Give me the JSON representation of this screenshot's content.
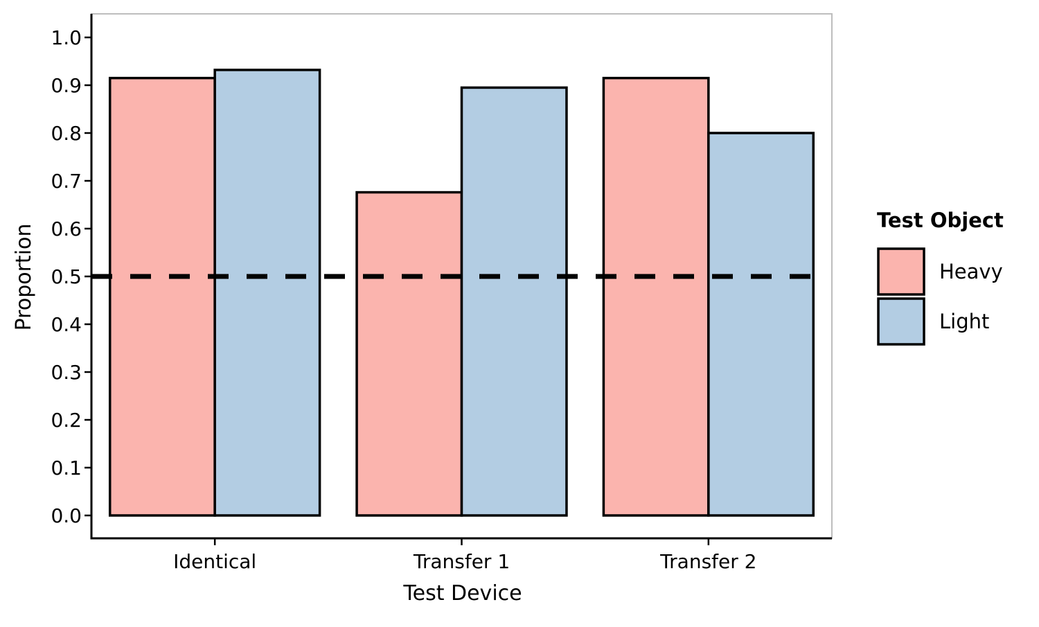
{
  "chart_data": {
    "type": "bar",
    "categories": [
      "Identical",
      "Transfer 1",
      "Transfer 2"
    ],
    "series": [
      {
        "name": "Heavy",
        "values": [
          0.915,
          0.676,
          0.915
        ],
        "color": "#FBB4AE"
      },
      {
        "name": "Light",
        "values": [
          0.932,
          0.895,
          0.8
        ],
        "color": "#B3CDE3"
      }
    ],
    "xlabel": "Test Device",
    "ylabel": "Proportion",
    "ylim": [
      0,
      1.0
    ],
    "yticks": [
      "0.0",
      "0.1",
      "0.2",
      "0.3",
      "0.4",
      "0.5",
      "0.6",
      "0.7",
      "0.8",
      "0.9",
      "1.0"
    ],
    "reference_line": {
      "y": 0.5,
      "style": "dashed",
      "color": "#000000"
    },
    "legend": {
      "title": "Test Object",
      "position": "right"
    },
    "grid": false
  }
}
